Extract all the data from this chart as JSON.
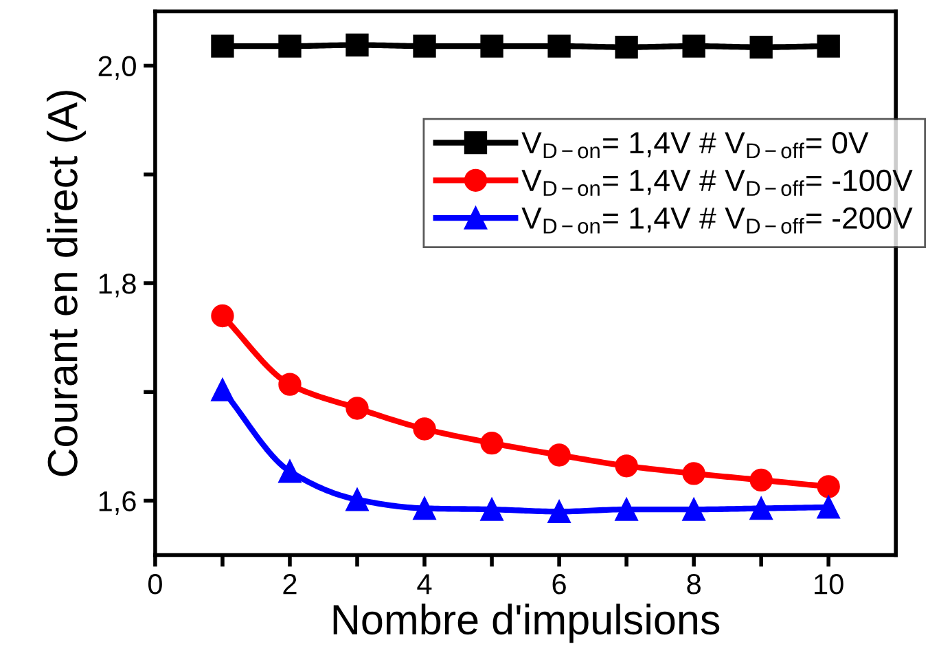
{
  "chart_data": {
    "type": "line",
    "xlabel": "Nombre d'impulsions",
    "ylabel": "Courant en direct (A)",
    "x": [
      1,
      2,
      3,
      4,
      5,
      6,
      7,
      8,
      9,
      10
    ],
    "series": [
      {
        "name": "V$_{D−on}$= 1,4V # V$_{D−off}$= 0V",
        "color": "#000000",
        "marker": "square",
        "values": [
          2.018,
          2.018,
          2.019,
          2.018,
          2.018,
          2.018,
          2.017,
          2.018,
          2.017,
          2.018
        ]
      },
      {
        "name": "V$_{D−on}$= 1,4V # V$_{D−off}$= -100V",
        "color": "#ff0000",
        "marker": "circle",
        "values": [
          1.77,
          1.707,
          1.685,
          1.666,
          1.653,
          1.642,
          1.632,
          1.625,
          1.619,
          1.613
        ]
      },
      {
        "name": "V$_{D−on}$= 1,4V # V$_{D−off}$= -200V",
        "color": "#0000ff",
        "marker": "triangle",
        "values": [
          1.702,
          1.627,
          1.601,
          1.593,
          1.592,
          1.59,
          1.592,
          1.592,
          1.593,
          1.594
        ]
      }
    ],
    "xlim": [
      0,
      11
    ],
    "ylim": [
      1.55,
      2.05
    ],
    "xticks": [
      0,
      {
        "value": 1,
        "label": null
      },
      2,
      {
        "value": 3,
        "label": null
      },
      4,
      {
        "value": 5,
        "label": null
      },
      6,
      {
        "value": 7,
        "label": null
      },
      8,
      {
        "value": 9,
        "label": null
      },
      10
    ],
    "yticks": [
      {
        "value": 1.6,
        "label": "1,6"
      },
      {
        "value": 1.7,
        "label": null
      },
      {
        "value": 1.8,
        "label": "1,8"
      },
      {
        "value": 1.9,
        "label": null
      },
      {
        "value": 2.0,
        "label": "2,0"
      }
    ],
    "line_style": "solid",
    "grid": false,
    "legend": "top right"
  }
}
